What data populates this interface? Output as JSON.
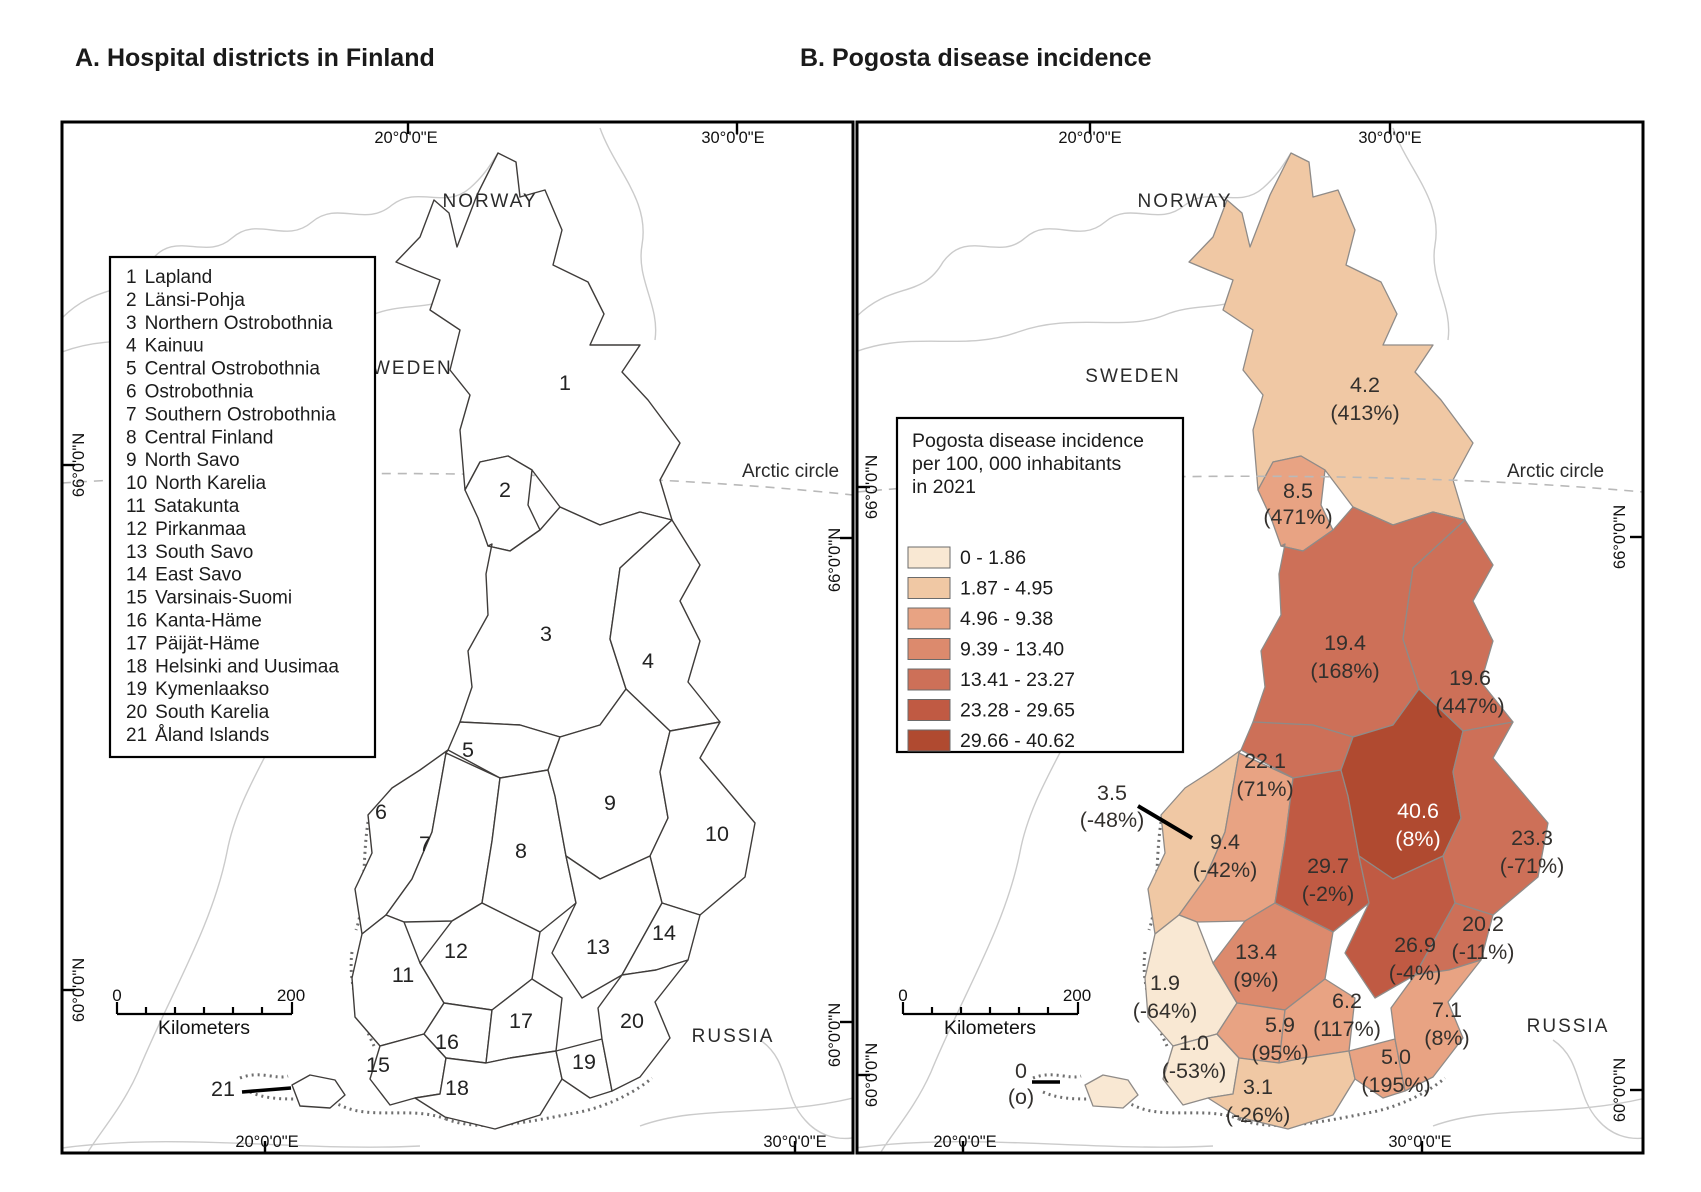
{
  "titles": {
    "a": "A. Hospital districts in Finland",
    "b": "B. Pogosta disease incidence"
  },
  "countries": {
    "norway": "NORWAY",
    "sweden": "SWEDEN",
    "russia": "RUSSIA"
  },
  "arctic_label": "Arctic circle",
  "grid": {
    "lon_w": "20°0'0\"E",
    "lon_e": "30°0'0\"E",
    "lat_n": "66°0'0\"N",
    "lat_s": "60°0'0\"N"
  },
  "scale": {
    "start": "0",
    "end": "200",
    "unit": "Kilometers"
  },
  "legend": {
    "title_line1": "Pogosta disease incidence",
    "title_line2": "per 100, 000 inhabitants",
    "title_line3": "in 2021",
    "classes": [
      {
        "label": "0 - 1.86",
        "fill": "#f9e8d3"
      },
      {
        "label": "1.87 - 4.95",
        "fill": "#f0c8a4"
      },
      {
        "label": "4.96 - 9.38",
        "fill": "#e8a383"
      },
      {
        "label": "9.39 - 13.40",
        "fill": "#dc8a6d"
      },
      {
        "label": "13.41 - 23.27",
        "fill": "#cd7058"
      },
      {
        "label": "23.28 - 29.65",
        "fill": "#c05a43"
      },
      {
        "label": "29.66 - 40.62",
        "fill": "#b04a30"
      }
    ]
  },
  "districts": [
    {
      "num": "1",
      "name": "Lapland",
      "value": "4.2",
      "change": "(413%)",
      "fill": "#f0c8a4"
    },
    {
      "num": "2",
      "name": "Länsi-Pohja",
      "value": "8.5",
      "change": "(471%)",
      "fill": "#e8a383"
    },
    {
      "num": "3",
      "name": "Northern Ostrobothnia",
      "value": "19.4",
      "change": "(168%)",
      "fill": "#cd7058"
    },
    {
      "num": "4",
      "name": "Kainuu",
      "value": "19.6",
      "change": "(447%)",
      "fill": "#cd7058"
    },
    {
      "num": "5",
      "name": "Central Ostrobothnia",
      "value": "22.1",
      "change": "(71%)",
      "fill": "#cd7058"
    },
    {
      "num": "6",
      "name": "Ostrobothnia",
      "value": "3.5",
      "change": "(-48%)",
      "fill": "#f0c8a4"
    },
    {
      "num": "7",
      "name": "Southern Ostrobothnia",
      "value": "9.4",
      "change": "(-42%)",
      "fill": "#e8a383"
    },
    {
      "num": "8",
      "name": "Central Finland",
      "value": "29.7",
      "change": "(-2%)",
      "fill": "#c05a43"
    },
    {
      "num": "9",
      "name": "North Savo",
      "value": "40.6",
      "change": "(8%)",
      "fill": "#b04a30",
      "label_color": "#ffffff"
    },
    {
      "num": "10",
      "name": "North Karelia",
      "value": "23.3",
      "change": "(-71%)",
      "fill": "#cd7058"
    },
    {
      "num": "11",
      "name": "Satakunta",
      "value": "1.9",
      "change": "(-64%)",
      "fill": "#f9e8d3"
    },
    {
      "num": "12",
      "name": "Pirkanmaa",
      "value": "13.4",
      "change": "(9%)",
      "fill": "#dc8a6d"
    },
    {
      "num": "13",
      "name": "South Savo",
      "value": "26.9",
      "change": "(-4%)",
      "fill": "#c05a43"
    },
    {
      "num": "14",
      "name": "East Savo",
      "value": "20.2",
      "change": "(-11%)",
      "fill": "#cd7058"
    },
    {
      "num": "15",
      "name": "Varsinais-Suomi",
      "value": "1.0",
      "change": "(-53%)",
      "fill": "#f9e8d3"
    },
    {
      "num": "16",
      "name": "Kanta-Häme",
      "value": "5.9",
      "change": "(95%)",
      "fill": "#e8a383"
    },
    {
      "num": "17",
      "name": "Päijät-Häme",
      "value": "6.2",
      "change": "(117%)",
      "fill": "#e8a383"
    },
    {
      "num": "18",
      "name": "Helsinki and Uusimaa",
      "value": "3.1",
      "change": "(-26%)",
      "fill": "#f0c8a4"
    },
    {
      "num": "19",
      "name": "Kymenlaakso",
      "value": "5.0",
      "change": "(195%)",
      "fill": "#e8a383"
    },
    {
      "num": "20",
      "name": "South Karelia",
      "value": "7.1",
      "change": "(8%)",
      "fill": "#e8a383"
    },
    {
      "num": "21",
      "name": "Åland Islands",
      "value": "0",
      "change": "(o)",
      "fill": "#f9e8d3"
    }
  ]
}
